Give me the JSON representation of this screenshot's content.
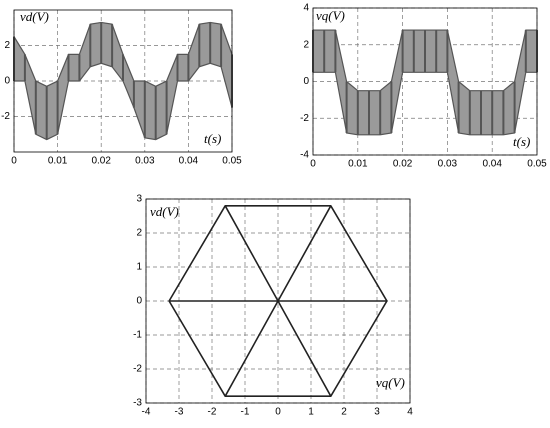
{
  "chart_data": [
    {
      "type": "band",
      "ylabel": "vd(V)",
      "xlabel": "t(s)",
      "xlim": [
        0,
        0.05
      ],
      "xticks": [
        0,
        0.01,
        0.02,
        0.03,
        0.04,
        0.05
      ],
      "ylim": [
        -4,
        4
      ],
      "yticks": [
        -2,
        0,
        2
      ],
      "grid": true,
      "color": "#555555",
      "x": [
        0,
        0.0025,
        0.005,
        0.0075,
        0.01,
        0.0125,
        0.015,
        0.0175,
        0.02,
        0.0225,
        0.025,
        0.0275,
        0.03,
        0.0325,
        0.035,
        0.0375,
        0.04,
        0.0425,
        0.045,
        0.0475,
        0.05
      ],
      "series": [
        {
          "values": [
            2.5,
            1.5,
            0,
            -0.3,
            0,
            1.5,
            1.5,
            3.2,
            3.3,
            3.2,
            1.5,
            0,
            0,
            -0.3,
            0,
            1.5,
            1.5,
            3.2,
            3.3,
            3.2,
            1.5
          ]
        },
        {
          "values": [
            0,
            0,
            -3.0,
            -3.3,
            -3.0,
            0,
            0,
            0.8,
            1.0,
            0.8,
            0,
            -1.5,
            -3.2,
            -3.3,
            -3.0,
            0,
            0,
            0.8,
            1.0,
            0.8,
            -1.5
          ]
        }
      ]
    },
    {
      "type": "band",
      "ylabel": "vq(V)",
      "xlabel": "t(s)",
      "xlim": [
        0,
        0.05
      ],
      "xticks": [
        0,
        0.01,
        0.02,
        0.03,
        0.04,
        0.05
      ],
      "ylim": [
        -4,
        4
      ],
      "yticks": [
        -4,
        -2,
        0,
        2,
        4
      ],
      "grid": true,
      "color": "#555555",
      "x": [
        0,
        0.0025,
        0.005,
        0.0075,
        0.01,
        0.0125,
        0.015,
        0.0175,
        0.02,
        0.0225,
        0.025,
        0.0275,
        0.03,
        0.0325,
        0.035,
        0.0375,
        0.04,
        0.0425,
        0.045,
        0.0475,
        0.05
      ],
      "series": [
        {
          "values": [
            2.8,
            2.8,
            2.8,
            0,
            -0.5,
            -0.5,
            -0.5,
            0,
            2.8,
            2.8,
            2.8,
            2.8,
            2.8,
            0,
            -0.5,
            -0.5,
            -0.5,
            -0.5,
            0,
            2.8,
            2.8
          ]
        },
        {
          "values": [
            0.5,
            0.5,
            0.5,
            -2.8,
            -2.9,
            -2.9,
            -2.9,
            -2.8,
            0.5,
            0.5,
            0.5,
            0.5,
            0.5,
            -2.8,
            -2.9,
            -2.9,
            -2.9,
            -2.9,
            -2.8,
            0.5,
            0.5
          ]
        }
      ]
    },
    {
      "type": "line",
      "ylabel": "vd(V)",
      "xlabel": "vq(V)",
      "xlim": [
        -4,
        4
      ],
      "xticks": [
        -4,
        -3,
        -2,
        -1,
        0,
        1,
        2,
        3,
        4
      ],
      "ylim": [
        -3,
        3
      ],
      "yticks": [
        -3,
        -2,
        -1,
        0,
        1,
        2,
        3
      ],
      "grid": true,
      "color": "#222222",
      "x": [
        0,
        3.3,
        1.6,
        0,
        1.6,
        -1.6,
        0,
        -1.6,
        -3.3,
        0,
        -3.3,
        -1.6,
        0,
        -1.6,
        1.6,
        0,
        1.6,
        3.3,
        0
      ],
      "values": [
        0,
        0,
        2.8,
        0,
        2.8,
        2.8,
        0,
        2.8,
        0,
        0,
        0,
        -2.8,
        0,
        -2.8,
        -2.8,
        0,
        -2.8,
        0,
        0
      ]
    }
  ]
}
